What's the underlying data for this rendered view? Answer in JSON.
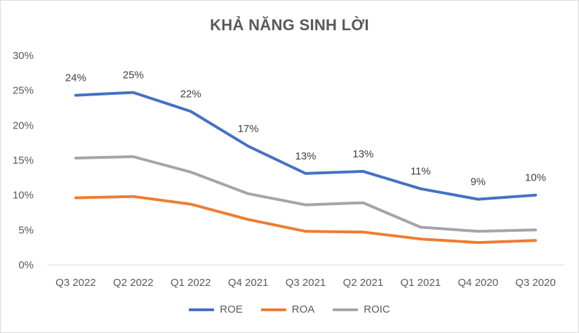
{
  "chart_data": {
    "type": "line",
    "title": "KHẢ NĂNG SINH LỜI",
    "categories": [
      "Q3 2022",
      "Q2 2022",
      "Q1 2022",
      "Q4 2021",
      "Q3 2021",
      "Q2 2021",
      "Q1 2021",
      "Q4 2020",
      "Q3 2020"
    ],
    "ylim": [
      0,
      30
    ],
    "yticks": [
      "0%",
      "5%",
      "10%",
      "15%",
      "20%",
      "25%",
      "30%"
    ],
    "grid": false,
    "legend_position": "bottom",
    "series": [
      {
        "name": "ROE",
        "color": "#4472C4",
        "values": [
          24.3,
          24.7,
          22.0,
          17.0,
          13.1,
          13.4,
          10.9,
          9.4,
          10.0
        ],
        "labels": [
          "24%",
          "25%",
          "22%",
          "17%",
          "13%",
          "13%",
          "11%",
          "9%",
          "10%"
        ]
      },
      {
        "name": "ROA",
        "color": "#ED7D31",
        "values": [
          9.6,
          9.8,
          8.7,
          6.5,
          4.8,
          4.7,
          3.7,
          3.2,
          3.5
        ]
      },
      {
        "name": "ROIC",
        "color": "#A5A5A5",
        "values": [
          15.3,
          15.5,
          13.3,
          10.2,
          8.6,
          8.9,
          5.4,
          4.8,
          5.0
        ]
      }
    ]
  }
}
